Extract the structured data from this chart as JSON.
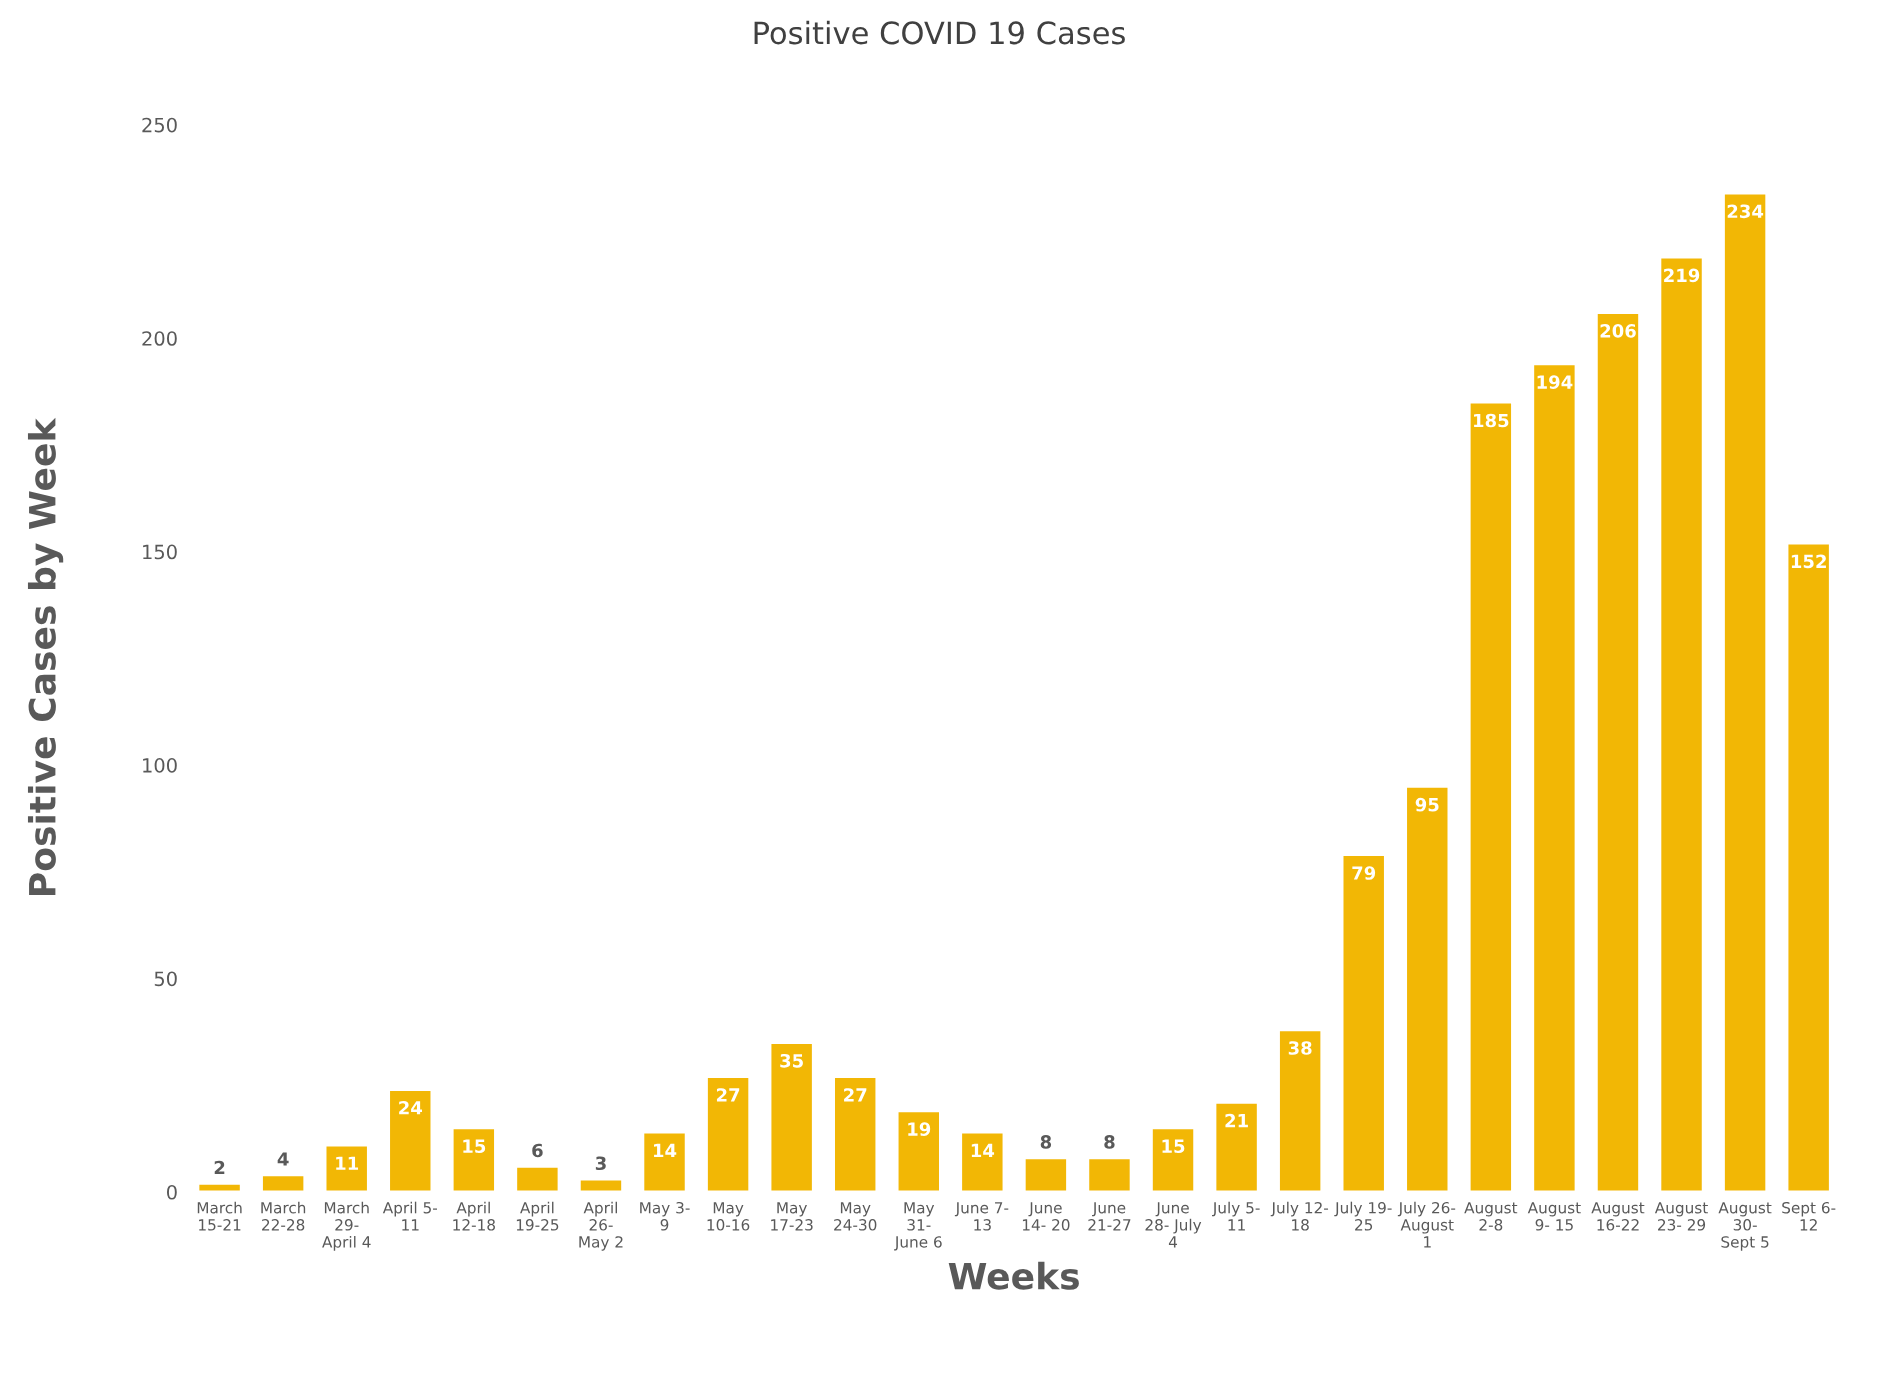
{
  "chart_data": {
    "type": "bar",
    "title": "Positive COVID 19 Cases",
    "xlabel": "Weeks",
    "ylabel": "Positive Cases by Week",
    "categories": [
      "March\n15-21",
      "March\n22-28",
      "March\n29-\nApril 4",
      "April 5-\n11",
      "April\n12-18",
      "April\n19-25",
      "April\n26-\nMay 2",
      "May 3-\n9",
      "May\n10-16",
      "May\n17-23",
      "May\n24-30",
      "May\n31-\nJune 6",
      "June 7-\n13",
      "June\n14- 20",
      "June\n21-27",
      "June\n28- July\n4",
      "July 5-\n11",
      "July 12-\n18",
      "July 19-\n25",
      "July 26-\nAugust\n1",
      "August\n2-8",
      "August\n9- 15",
      "August\n16-22",
      "August\n23- 29",
      "August\n30-\nSept 5",
      "Sept 6-\n12"
    ],
    "values": [
      2,
      4,
      11,
      24,
      15,
      6,
      3,
      14,
      27,
      35,
      27,
      19,
      14,
      8,
      8,
      15,
      21,
      38,
      79,
      95,
      185,
      194,
      206,
      219,
      234,
      152
    ],
    "color": "#f2b705",
    "ylim": [
      0,
      250
    ],
    "yticks": [
      0,
      50,
      100,
      150,
      200,
      250
    ],
    "grid": false,
    "data_labels": true
  }
}
